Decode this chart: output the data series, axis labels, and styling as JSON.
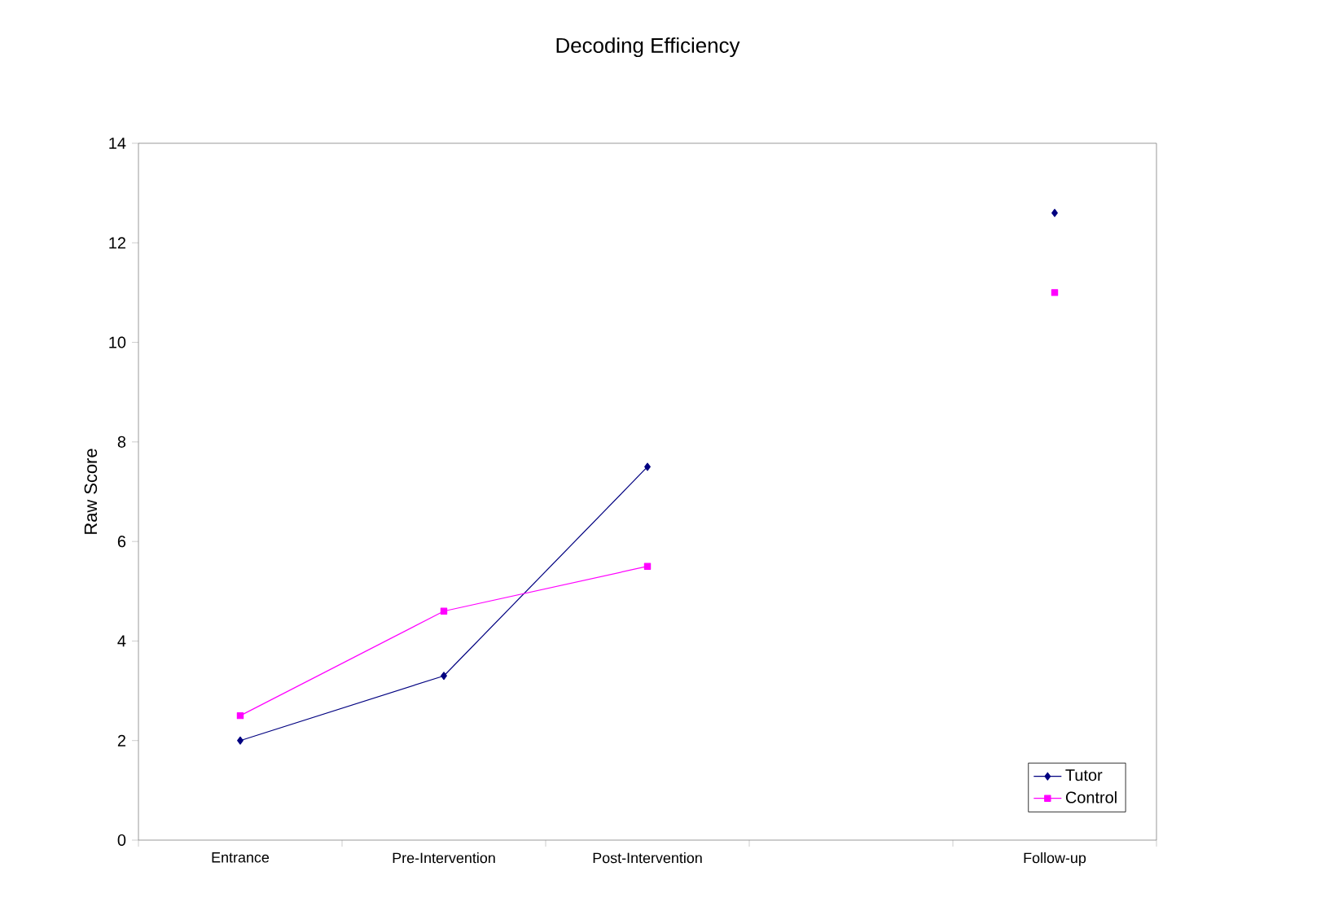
{
  "chart_data": {
    "type": "line",
    "title": "Decoding Efficiency",
    "ylabel": "Raw Score",
    "categories": [
      "Entrance",
      "Pre-Intervention",
      "Post-Intervention",
      null,
      "Follow-up"
    ],
    "series": [
      {
        "name": "Tutor",
        "color": "#000080",
        "marker": "diamond",
        "values": [
          2.0,
          3.3,
          7.5,
          null,
          12.6
        ]
      },
      {
        "name": "Control",
        "color": "#ff00ff",
        "marker": "square",
        "values": [
          2.5,
          4.6,
          5.5,
          null,
          11.0
        ]
      }
    ],
    "ylim": [
      0,
      14
    ],
    "yticks": [
      0,
      2,
      4,
      6,
      8,
      10,
      12,
      14
    ],
    "grid": false,
    "legend": "bottom right",
    "line_style": "solid"
  }
}
